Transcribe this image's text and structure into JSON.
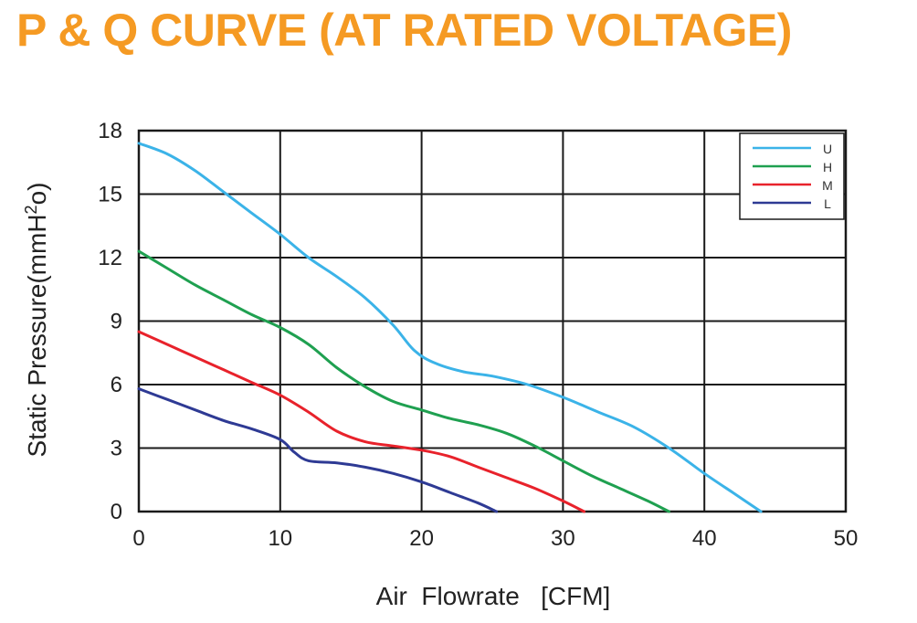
{
  "title": "P & Q CURVE (AT RATED VOLTAGE)",
  "chart_data": {
    "type": "line",
    "xlabel": "Air  Flowrate   [CFM]",
    "ylabel": "Static Pressure(mmH²o)",
    "xlim": [
      0,
      50
    ],
    "ylim": [
      0,
      18
    ],
    "xticks": [
      0,
      10,
      20,
      30,
      40,
      50
    ],
    "yticks": [
      0,
      3,
      6,
      9,
      12,
      15,
      18
    ],
    "grid": true,
    "legend_position": "top-right",
    "series": [
      {
        "name": "U",
        "color": "#3bb3e8",
        "points": [
          [
            0,
            17.4
          ],
          [
            2,
            16.9
          ],
          [
            4,
            16.1
          ],
          [
            6,
            15.1
          ],
          [
            8,
            14.1
          ],
          [
            10,
            13.1
          ],
          [
            12,
            12.0
          ],
          [
            14,
            11.1
          ],
          [
            16,
            10.1
          ],
          [
            18,
            8.8
          ],
          [
            19.5,
            7.6
          ],
          [
            21,
            7.0
          ],
          [
            23,
            6.6
          ],
          [
            25,
            6.4
          ],
          [
            27.5,
            6.0
          ],
          [
            30,
            5.4
          ],
          [
            32.5,
            4.7
          ],
          [
            35,
            4.0
          ],
          [
            37.5,
            3.0
          ],
          [
            40,
            1.8
          ],
          [
            42,
            0.9
          ],
          [
            44,
            0
          ]
        ]
      },
      {
        "name": "H",
        "color": "#1fa050",
        "points": [
          [
            0,
            12.3
          ],
          [
            2,
            11.5
          ],
          [
            4,
            10.7
          ],
          [
            6,
            10.0
          ],
          [
            8,
            9.3
          ],
          [
            10,
            8.7
          ],
          [
            12,
            7.9
          ],
          [
            14,
            6.8
          ],
          [
            16,
            5.9
          ],
          [
            18,
            5.2
          ],
          [
            20,
            4.8
          ],
          [
            22,
            4.4
          ],
          [
            24,
            4.1
          ],
          [
            26,
            3.7
          ],
          [
            28,
            3.1
          ],
          [
            30,
            2.4
          ],
          [
            32,
            1.7
          ],
          [
            34,
            1.1
          ],
          [
            36,
            0.5
          ],
          [
            37.5,
            0
          ]
        ]
      },
      {
        "name": "M",
        "color": "#e8222b",
        "points": [
          [
            0,
            8.5
          ],
          [
            2,
            7.9
          ],
          [
            4,
            7.3
          ],
          [
            6,
            6.7
          ],
          [
            8,
            6.1
          ],
          [
            10,
            5.5
          ],
          [
            12,
            4.7
          ],
          [
            14,
            3.8
          ],
          [
            16,
            3.3
          ],
          [
            18,
            3.1
          ],
          [
            20,
            2.9
          ],
          [
            22,
            2.6
          ],
          [
            24,
            2.1
          ],
          [
            26,
            1.6
          ],
          [
            28,
            1.1
          ],
          [
            30,
            0.5
          ],
          [
            31.5,
            0
          ]
        ]
      },
      {
        "name": "L",
        "color": "#2e3a94",
        "points": [
          [
            0,
            5.8
          ],
          [
            2,
            5.3
          ],
          [
            4,
            4.8
          ],
          [
            6,
            4.3
          ],
          [
            8,
            3.9
          ],
          [
            10,
            3.4
          ],
          [
            11,
            2.8
          ],
          [
            12,
            2.4
          ],
          [
            14,
            2.3
          ],
          [
            16,
            2.1
          ],
          [
            18,
            1.8
          ],
          [
            20,
            1.4
          ],
          [
            22,
            0.9
          ],
          [
            24,
            0.4
          ],
          [
            25.3,
            0
          ]
        ]
      }
    ]
  }
}
